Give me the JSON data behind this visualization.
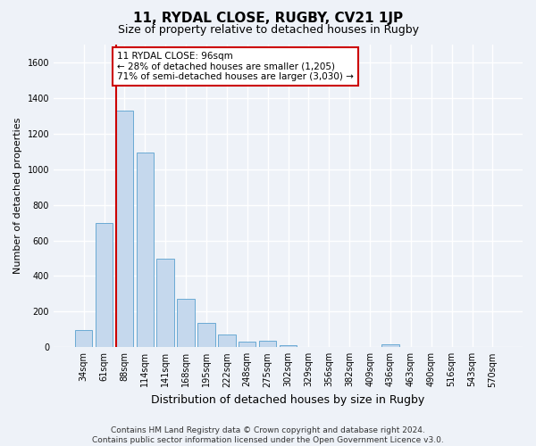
{
  "title": "11, RYDAL CLOSE, RUGBY, CV21 1JP",
  "subtitle": "Size of property relative to detached houses in Rugby",
  "xlabel": "Distribution of detached houses by size in Rugby",
  "ylabel": "Number of detached properties",
  "footer_line1": "Contains HM Land Registry data © Crown copyright and database right 2024.",
  "footer_line2": "Contains public sector information licensed under the Open Government Licence v3.0.",
  "categories": [
    "34sqm",
    "61sqm",
    "88sqm",
    "114sqm",
    "141sqm",
    "168sqm",
    "195sqm",
    "222sqm",
    "248sqm",
    "275sqm",
    "302sqm",
    "329sqm",
    "356sqm",
    "382sqm",
    "409sqm",
    "436sqm",
    "463sqm",
    "490sqm",
    "516sqm",
    "543sqm",
    "570sqm"
  ],
  "bar_values": [
    95,
    700,
    1330,
    1095,
    500,
    270,
    137,
    72,
    33,
    35,
    10,
    0,
    0,
    0,
    0,
    15,
    0,
    0,
    0,
    0,
    0
  ],
  "bar_color": "#c5d8ed",
  "bar_edge_color": "#6aaad4",
  "ylim": [
    0,
    1700
  ],
  "yticks": [
    0,
    200,
    400,
    600,
    800,
    1000,
    1200,
    1400,
    1600
  ],
  "vline_color": "#cc0000",
  "property_sqm": 96,
  "annotation_text": "11 RYDAL CLOSE: 96sqm\n← 28% of detached houses are smaller (1,205)\n71% of semi-detached houses are larger (3,030) →",
  "annotation_box_color": "#ffffff",
  "annotation_box_edge_color": "#cc0000",
  "background_color": "#eef2f8",
  "grid_color": "#ffffff",
  "title_fontsize": 11,
  "subtitle_fontsize": 9,
  "axis_label_fontsize": 8,
  "tick_fontsize": 7,
  "footer_fontsize": 6.5
}
